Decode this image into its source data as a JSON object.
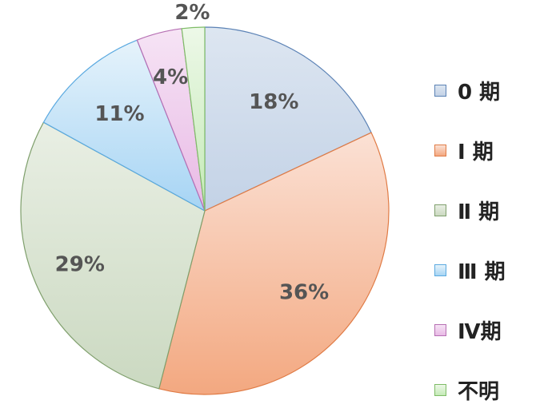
{
  "chart_data": {
    "type": "pie",
    "categories": [
      "0 期",
      "Ⅰ 期",
      "Ⅱ 期",
      "Ⅲ 期",
      "Ⅳ期",
      "不明"
    ],
    "values": [
      18,
      36,
      29,
      11,
      4,
      2
    ],
    "labels": [
      "18%",
      "36%",
      "29%",
      "11%",
      "4%",
      "2%"
    ],
    "start": "12 o'clock",
    "direction": "clockwise",
    "legend": "right",
    "colors": [
      {
        "light": "#dde6f1",
        "dark": "#c3d2e6",
        "edge": "#5b82b5"
      },
      {
        "light": "#fbe1d5",
        "dark": "#f3a880",
        "edge": "#e07b45"
      },
      {
        "light": "#e9efe4",
        "dark": "#cbd9c1",
        "edge": "#7f9f6c"
      },
      {
        "light": "#e6f3fb",
        "dark": "#a6d4f4",
        "edge": "#5aa9e0"
      },
      {
        "light": "#f6e4f5",
        "dark": "#e8b9e5",
        "edge": "#b66fb3"
      },
      {
        "light": "#edf8e8",
        "dark": "#c4eab6",
        "edge": "#7ebc66"
      }
    ]
  }
}
